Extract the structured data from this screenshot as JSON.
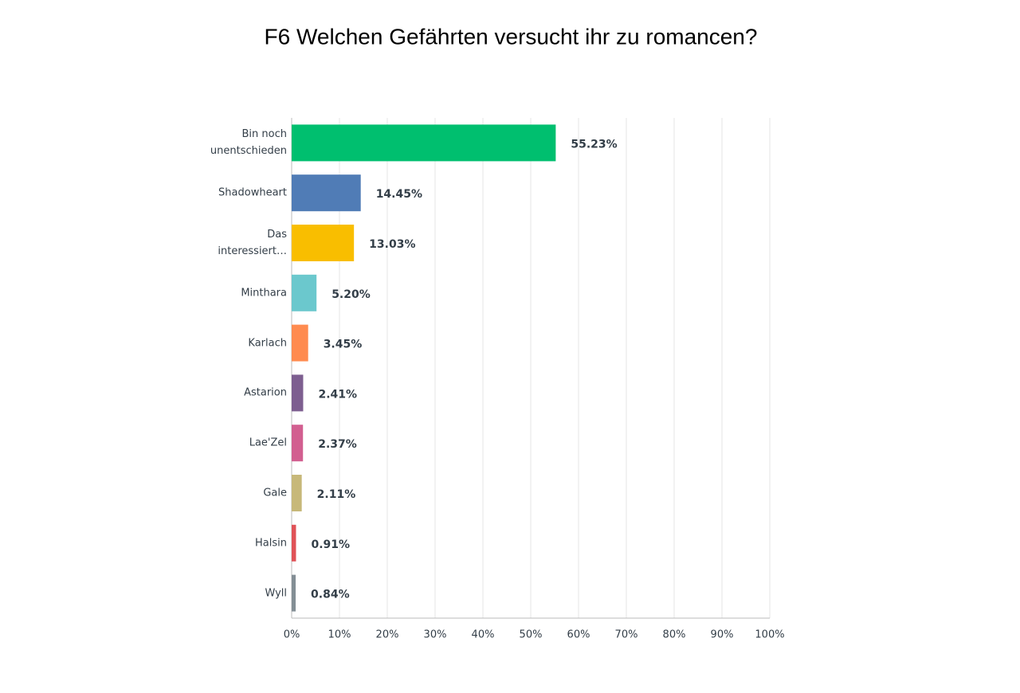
{
  "chart_data": {
    "type": "barh",
    "title": "F6 Welchen Gefährten versucht ihr zu romancen?",
    "categories": [
      "Bin noch unentschieden",
      "Shadowheart",
      "Das interessiert…",
      "Minthara",
      "Karlach",
      "Astarion",
      "Lae'Zel",
      "Gale",
      "Halsin",
      "Wyll"
    ],
    "values": [
      55.23,
      14.45,
      13.03,
      5.2,
      3.45,
      2.41,
      2.37,
      2.11,
      0.91,
      0.84
    ],
    "value_labels": [
      "55.23%",
      "14.45%",
      "13.03%",
      "5.20%",
      "3.45%",
      "2.41%",
      "2.37%",
      "2.11%",
      "0.91%",
      "0.84%"
    ],
    "colors": [
      "#00bf6f",
      "#507cb6",
      "#f9be00",
      "#6bc8cd",
      "#ff8b4f",
      "#7d5e90",
      "#d25f90",
      "#c7b879",
      "#e05257",
      "#838e95"
    ],
    "xlim": [
      0,
      100
    ],
    "xticks": [
      {
        "value": 0,
        "label": "0%"
      },
      {
        "value": 10,
        "label": "10%"
      },
      {
        "value": 20,
        "label": "20%"
      },
      {
        "value": 30,
        "label": "30%"
      },
      {
        "value": 40,
        "label": "40%"
      },
      {
        "value": 50,
        "label": "50%"
      },
      {
        "value": 60,
        "label": "60%"
      },
      {
        "value": 70,
        "label": "70%"
      },
      {
        "value": 80,
        "label": "80%"
      },
      {
        "value": 90,
        "label": "90%"
      },
      {
        "value": 100,
        "label": "100%"
      }
    ],
    "grid": true
  }
}
